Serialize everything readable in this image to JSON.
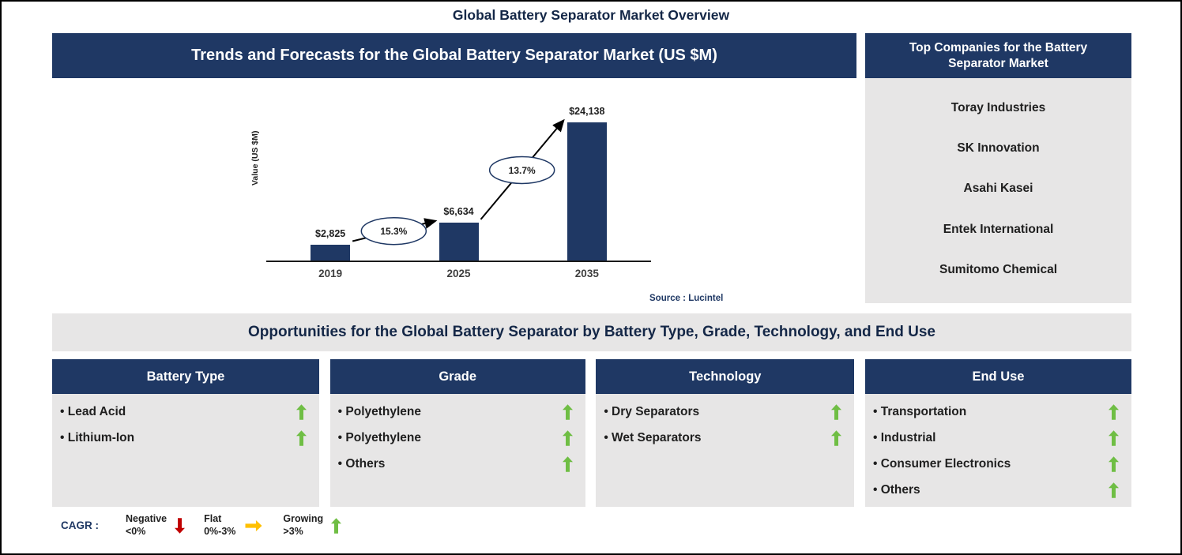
{
  "page": {
    "title": "Global Battery Separator Market Overview"
  },
  "trends_panel": {
    "header": "Trends and Forecasts for the Global Battery Separator Market (US $M)",
    "source": "Source : Lucintel"
  },
  "chart_data": {
    "type": "bar",
    "title": "Trends and Forecasts for the Global Battery Separator Market (US $M)",
    "categories": [
      "2019",
      "2025",
      "2035"
    ],
    "values": [
      2825,
      6634,
      24138
    ],
    "value_labels": [
      "$2,825",
      "$6,634",
      "$24,138"
    ],
    "growth_labels": [
      "15.3%",
      "13.7%"
    ],
    "xlabel": "",
    "ylabel": "Value (US $M)",
    "ylim": [
      0,
      24138
    ],
    "bar_color": "#1F3864",
    "legend_position": "none",
    "grid": false,
    "source": "Source : Lucintel"
  },
  "top_companies": {
    "header": "Top Companies for the Battery Separator Market",
    "companies": [
      "Toray Industries",
      "SK Innovation",
      "Asahi Kasei",
      "Entek International",
      "Sumitomo Chemical"
    ]
  },
  "opportunities": {
    "header": "Opportunities for the Global Battery Separator by Battery Type, Grade, Technology, and End Use",
    "columns": [
      {
        "header": "Battery Type",
        "items": [
          {
            "label": "Lead Acid",
            "trend": "growing"
          },
          {
            "label": "Lithium-Ion",
            "trend": "growing"
          }
        ]
      },
      {
        "header": "Grade",
        "items": [
          {
            "label": "Polyethylene",
            "trend": "growing"
          },
          {
            "label": "Polyethylene",
            "trend": "growing"
          },
          {
            "label": "Others",
            "trend": "growing"
          }
        ]
      },
      {
        "header": "Technology",
        "items": [
          {
            "label": "Dry Separators",
            "trend": "growing"
          },
          {
            "label": "Wet Separators",
            "trend": "growing"
          }
        ]
      },
      {
        "header": "End Use",
        "items": [
          {
            "label": "Transportation",
            "trend": "growing"
          },
          {
            "label": "Industrial",
            "trend": "growing"
          },
          {
            "label": "Consumer Electronics",
            "trend": "growing"
          },
          {
            "label": "Others",
            "trend": "growing"
          }
        ]
      }
    ]
  },
  "legend": {
    "label": "CAGR :",
    "entries": [
      {
        "name": "Negative",
        "range": "<0%",
        "arrow": "down",
        "color": "#C00000"
      },
      {
        "name": "Flat",
        "range": "0%-3%",
        "arrow": "right",
        "color": "#FFC000"
      },
      {
        "name": "Growing",
        "range": ">3%",
        "arrow": "up",
        "color": "#6FBE44"
      }
    ]
  },
  "colors": {
    "navy": "#1F3864",
    "panel_gray": "#E7E6E6",
    "green": "#6FBE44",
    "red": "#C00000",
    "yellow": "#FFC000"
  }
}
